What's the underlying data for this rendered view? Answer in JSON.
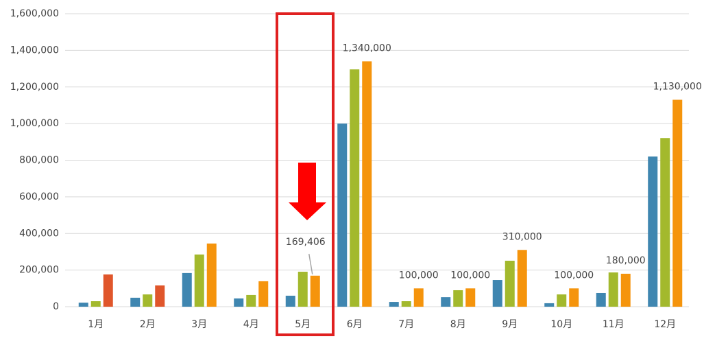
{
  "chart_data": {
    "type": "bar",
    "categories": [
      "1月",
      "2月",
      "3月",
      "4月",
      "5月",
      "6月",
      "7月",
      "8月",
      "9月",
      "10月",
      "11月",
      "12月"
    ],
    "series": [
      {
        "color": "#3f86b0",
        "values": [
          22000,
          49000,
          184000,
          45000,
          60000,
          1000000,
          26000,
          52000,
          146000,
          19000,
          75000,
          820000
        ]
      },
      {
        "color": "#a3b92d",
        "values": [
          30000,
          67000,
          285000,
          64000,
          191000,
          1296000,
          30000,
          90000,
          251000,
          67000,
          187000,
          921000
        ]
      },
      {
        "color": "#f5940c",
        "colors": [
          "#e0562b",
          "#e0562b",
          "#f5940c",
          "#f5940c",
          "#f5940c",
          "#f5940c",
          "#f5940c",
          "#f5940c",
          "#f5940c",
          "#f5940c",
          "#f5940c",
          "#f5940c"
        ],
        "values": [
          176000,
          116000,
          345000,
          139000,
          169406,
          1340000,
          100000,
          100000,
          310000,
          100000,
          180000,
          1130000
        ],
        "value_labels": [
          null,
          null,
          null,
          null,
          "169,406",
          "1,340,000",
          "100,000",
          "100,000",
          "310,000",
          "100,000",
          "180,000",
          "1,130,000"
        ]
      }
    ],
    "ylim": [
      0,
      1600000
    ],
    "yticks": [
      0,
      {
        "value": 200000,
        "label": "200,000"
      },
      {
        "value": 400000,
        "label": "400,000"
      },
      {
        "value": 600000,
        "label": "600,000"
      },
      {
        "value": 800000,
        "label": "800,000"
      },
      {
        "value": 1000000,
        "label": "1,000,000"
      },
      {
        "value": 1200000,
        "label": "1,200,000"
      },
      {
        "value": 1400000,
        "label": "1,400,000"
      },
      {
        "value": 1600000,
        "label": "1,600,000"
      }
    ],
    "grid": true
  }
}
